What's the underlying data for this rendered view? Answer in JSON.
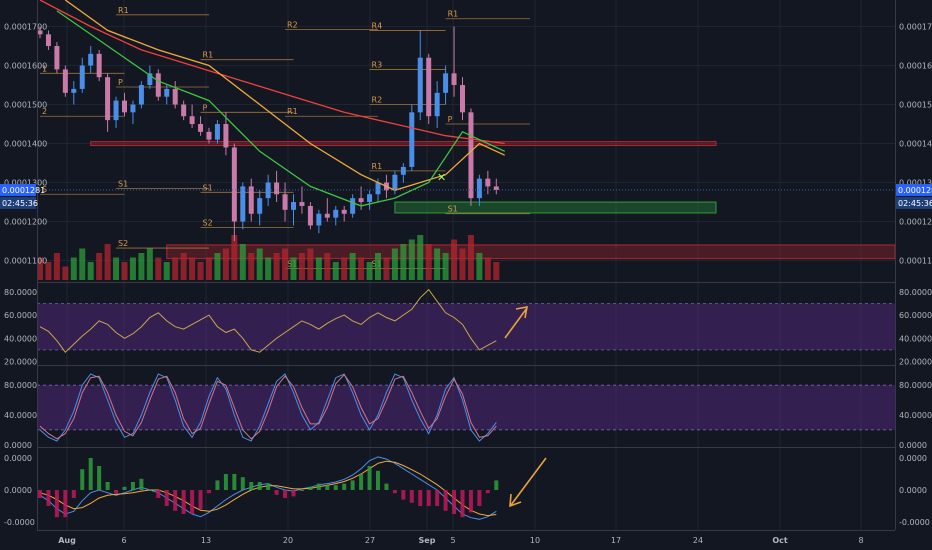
{
  "chart_data": [
    {
      "type": "candlestick",
      "panel": "price",
      "y_ticks": [
        "0.0001700",
        "0.0001600",
        "0.0001500",
        "0.0001400",
        "0.0001300",
        "0.0001200",
        "0.0001100"
      ],
      "y_tick_values": [
        0.00017,
        0.00016,
        0.00015,
        0.00014,
        0.00013,
        0.00012,
        0.00011
      ],
      "ylim": [
        0.0001045,
        0.0001768
      ],
      "last_price_label": "0.0001281",
      "last_price": 0.0001281,
      "countdown_label": "02:45:36",
      "candles": [
        [
          0.000169,
          0.00017,
          0.000167,
          0.000168
        ],
        [
          0.000168,
          0.000169,
          0.000164,
          0.000165
        ],
        [
          0.000165,
          0.000166,
          0.000158,
          0.000159
        ],
        [
          0.000159,
          0.00016,
          0.000152,
          0.000153
        ],
        [
          0.000153,
          0.000156,
          0.00015,
          0.000154
        ],
        [
          0.000154,
          0.000162,
          0.000153,
          0.00016
        ],
        [
          0.00016,
          0.000165,
          0.000158,
          0.000163
        ],
        [
          0.000163,
          0.000164,
          0.000156,
          0.000157
        ],
        [
          0.000157,
          0.000158,
          0.000143,
          0.000146
        ],
        [
          0.000146,
          0.000152,
          0.000144,
          0.000151
        ],
        [
          0.000151,
          0.000153,
          0.000147,
          0.000148
        ],
        [
          0.000148,
          0.000151,
          0.000145,
          0.00015
        ],
        [
          0.00015,
          0.000156,
          0.000149,
          0.000155
        ],
        [
          0.000155,
          0.00016,
          0.000154,
          0.000158
        ],
        [
          0.000158,
          0.000159,
          0.000151,
          0.000152
        ],
        [
          0.000152,
          0.000155,
          0.00015,
          0.000154
        ],
        [
          0.000154,
          0.000156,
          0.000149,
          0.00015
        ],
        [
          0.00015,
          0.000151,
          0.000146,
          0.000147
        ],
        [
          0.000147,
          0.00015,
          0.000144,
          0.000145
        ],
        [
          0.000145,
          0.000147,
          0.000142,
          0.000143
        ],
        [
          0.000143,
          0.000144,
          0.00014,
          0.000141
        ],
        [
          0.000141,
          0.000146,
          0.00014,
          0.000145
        ],
        [
          0.000145,
          0.000148,
          0.000137,
          0.000139
        ],
        [
          0.000139,
          0.00014,
          0.000115,
          0.00012
        ],
        [
          0.00012,
          0.00013,
          0.000118,
          0.000129
        ],
        [
          0.000129,
          0.000131,
          0.00012,
          0.000122
        ],
        [
          0.000122,
          0.000128,
          0.000119,
          0.000126
        ],
        [
          0.000126,
          0.000132,
          0.000124,
          0.00013
        ],
        [
          0.00013,
          0.000133,
          0.000125,
          0.000127
        ],
        [
          0.000127,
          0.00013,
          0.00012,
          0.000123
        ],
        [
          0.000123,
          0.000127,
          0.000119,
          0.000125
        ],
        [
          0.000125,
          0.000129,
          0.000122,
          0.000124
        ],
        [
          0.000124,
          0.000125,
          0.000118,
          0.000119
        ],
        [
          0.000119,
          0.000123,
          0.000117,
          0.000122
        ],
        [
          0.000122,
          0.000126,
          0.00012,
          0.000121
        ],
        [
          0.000121,
          0.000124,
          0.000119,
          0.000123
        ],
        [
          0.000123,
          0.000124,
          0.00012,
          0.000122
        ],
        [
          0.000122,
          0.000127,
          0.000121,
          0.000126
        ],
        [
          0.000126,
          0.000129,
          0.000123,
          0.000125
        ],
        [
          0.000125,
          0.000128,
          0.000123,
          0.000127
        ],
        [
          0.000127,
          0.000131,
          0.000125,
          0.00013
        ],
        [
          0.00013,
          0.000132,
          0.000126,
          0.000128
        ],
        [
          0.000128,
          0.000133,
          0.000127,
          0.000132
        ],
        [
          0.000132,
          0.000135,
          0.00013,
          0.000134
        ],
        [
          0.000134,
          0.00015,
          0.000133,
          0.000148
        ],
        [
          0.000148,
          0.000169,
          0.000146,
          0.000162
        ],
        [
          0.000162,
          0.000163,
          0.000145,
          0.000147
        ],
        [
          0.000147,
          0.000156,
          0.000144,
          0.000153
        ],
        [
          0.000153,
          0.00016,
          0.00015,
          0.000158
        ],
        [
          0.000158,
          0.00017,
          0.000152,
          0.000155
        ],
        [
          0.000155,
          0.000157,
          0.000146,
          0.000148
        ],
        [
          0.000148,
          0.000149,
          0.000124,
          0.000126
        ],
        [
          0.000126,
          0.000132,
          0.000124,
          0.000131
        ],
        [
          0.000131,
          0.000133,
          0.000127,
          0.000129
        ],
        [
          0.000129,
          0.000131,
          0.000127,
          0.0001281
        ]
      ],
      "moving_averages": [
        {
          "color": "#f0413b",
          "points": [
            [
              0.0001768,
              0
            ],
            [
              0.00017,
              6
            ],
            [
              0.000164,
              12
            ],
            [
              0.00016,
              18
            ],
            [
              0.000156,
              24
            ],
            [
              0.000152,
              30
            ],
            [
              0.000148,
              36
            ],
            [
              0.000145,
              42
            ],
            [
              0.000142,
              48
            ],
            [
              0.00014,
              55
            ]
          ]
        },
        {
          "color": "#f0a93b",
          "points": [
            [
              0.0001768,
              3
            ],
            [
              0.000169,
              8
            ],
            [
              0.000164,
              14
            ],
            [
              0.00016,
              20
            ],
            [
              0.00015,
              26
            ],
            [
              0.00014,
              32
            ],
            [
              0.000132,
              38
            ],
            [
              0.000128,
              42
            ],
            [
              0.000132,
              48
            ],
            [
              0.00014,
              52
            ],
            [
              0.000137,
              55
            ]
          ]
        },
        {
          "color": "#3ec43e",
          "points": [
            [
              0.000174,
              2
            ],
            [
              0.000165,
              8
            ],
            [
              0.000156,
              14
            ],
            [
              0.000151,
              20
            ],
            [
              0.000138,
              26
            ],
            [
              0.000129,
              32
            ],
            [
              0.000124,
              38
            ],
            [
              0.000126,
              42
            ],
            [
              0.00013,
              46
            ],
            [
              0.000143,
              50
            ],
            [
              0.000138,
              55
            ]
          ]
        }
      ],
      "horizontal_zones": [
        {
          "color": "#b3262e",
          "y": [
            0.0001395,
            0.0001405
          ],
          "x_start": 6,
          "x_end": 80
        },
        {
          "color": "#2e9e3a",
          "y": [
            0.0001222,
            0.000125
          ],
          "x_start": 42,
          "x_end": 80
        },
        {
          "color": "#b3262e",
          "y": [
            0.0001105,
            0.000114
          ],
          "x_start": 15,
          "x_end": 110
        }
      ],
      "pivot_levels": [
        {
          "label": "R1",
          "value": 0.000173,
          "x_start": 9,
          "x_end": 20
        },
        {
          "label": "R2",
          "value": 0.0001692,
          "x_start": 29,
          "x_end": 40
        },
        {
          "label": "R1",
          "value": 0.0001615,
          "x_start": 19,
          "x_end": 30
        },
        {
          "label": "1",
          "value": 0.000158,
          "x_start": 0,
          "x_end": 10
        },
        {
          "label": "P",
          "value": 0.0001545,
          "x_start": 9,
          "x_end": 20
        },
        {
          "label": "P",
          "value": 0.000148,
          "x_start": 19,
          "x_end": 30
        },
        {
          "label": "R1",
          "value": 0.000147,
          "x_start": 29,
          "x_end": 40
        },
        {
          "label": "2",
          "value": 0.000147,
          "x_start": 0,
          "x_end": 10
        },
        {
          "label": "S1",
          "value": 0.0001285,
          "x_start": 9,
          "x_end": 20
        },
        {
          "label": "S1",
          "value": 0.0001275,
          "x_start": 19,
          "x_end": 30
        },
        {
          "label": "S",
          "value": 0.000127,
          "x_start": 0,
          "x_end": 10
        },
        {
          "label": "S2",
          "value": 0.0001185,
          "x_start": 19,
          "x_end": 30
        },
        {
          "label": "S2",
          "value": 0.0001132,
          "x_start": 9,
          "x_end": 20
        },
        {
          "label": "S1",
          "value": 0.000108,
          "x_start": 29,
          "x_end": 40
        },
        {
          "label": "R1",
          "value": 0.000133,
          "x_start": 39,
          "x_end": 48
        },
        {
          "label": "S1",
          "value": 0.000108,
          "x_start": 39,
          "x_end": 48
        },
        {
          "label": "R4",
          "value": 0.000169,
          "x_start": 39,
          "x_end": 48
        },
        {
          "label": "R3",
          "value": 0.000159,
          "x_start": 39,
          "x_end": 48
        },
        {
          "label": "R2",
          "value": 0.00015,
          "x_start": 39,
          "x_end": 48
        },
        {
          "label": "R1",
          "value": 0.000172,
          "x_start": 48,
          "x_end": 58
        },
        {
          "label": "P",
          "value": 0.000145,
          "x_start": 48,
          "x_end": 58
        },
        {
          "label": "S1",
          "value": 0.000122,
          "x_start": 48,
          "x_end": 58
        }
      ],
      "volume_relative": [
        0.5,
        0.4,
        0.6,
        0.3,
        0.5,
        0.7,
        0.4,
        0.6,
        0.8,
        0.5,
        0.4,
        0.5,
        0.6,
        0.7,
        0.5,
        0.4,
        0.5,
        0.6,
        0.5,
        0.4,
        0.5,
        0.6,
        0.7,
        1.0,
        0.8,
        0.6,
        0.7,
        0.5,
        0.6,
        0.7,
        0.5,
        0.6,
        0.7,
        0.5,
        0.6,
        0.4,
        0.5,
        0.6,
        0.5,
        0.4,
        0.6,
        0.5,
        0.7,
        0.8,
        0.9,
        1.0,
        0.8,
        0.7,
        0.6,
        0.9,
        0.7,
        1.0,
        0.6,
        0.5,
        0.4
      ]
    },
    {
      "type": "line",
      "panel": "rsi",
      "y_ticks": [
        "80.0000",
        "60.0000",
        "40.0000",
        "20.0000"
      ],
      "y_tick_values": [
        80,
        60,
        40,
        20
      ],
      "ylim": [
        17,
        86
      ],
      "band": [
        30,
        70
      ],
      "series": [
        {
          "color": "#c9a44a",
          "values": [
            50,
            46,
            38,
            28,
            35,
            42,
            48,
            55,
            52,
            45,
            40,
            44,
            50,
            58,
            62,
            55,
            50,
            48,
            52,
            56,
            60,
            50,
            45,
            48,
            40,
            30,
            28,
            34,
            40,
            45,
            50,
            55,
            52,
            48,
            53,
            57,
            60,
            55,
            52,
            58,
            62,
            58,
            55,
            60,
            65,
            75,
            82,
            72,
            62,
            58,
            52,
            40,
            30,
            34,
            38
          ]
        }
      ]
    },
    {
      "type": "line",
      "panel": "stoch_rsi",
      "y_ticks": [
        "80.0000",
        "40.0000",
        "0.0000"
      ],
      "y_tick_values": [
        80,
        40,
        0
      ],
      "ylim": [
        -3,
        103
      ],
      "band": [
        20,
        80
      ],
      "series": [
        {
          "color": "#4a8ee8",
          "values": [
            20,
            10,
            5,
            20,
            45,
            80,
            95,
            90,
            60,
            30,
            10,
            15,
            40,
            70,
            95,
            90,
            60,
            25,
            10,
            30,
            65,
            90,
            75,
            40,
            10,
            5,
            25,
            55,
            85,
            95,
            70,
            40,
            20,
            30,
            60,
            90,
            95,
            70,
            40,
            20,
            40,
            70,
            95,
            90,
            60,
            35,
            15,
            40,
            75,
            90,
            60,
            20,
            5,
            15,
            30
          ]
        },
        {
          "color": "#d0748a",
          "values": [
            25,
            15,
            8,
            15,
            35,
            70,
            90,
            92,
            70,
            40,
            18,
            12,
            30,
            60,
            88,
            92,
            70,
            35,
            15,
            22,
            55,
            85,
            80,
            50,
            20,
            8,
            18,
            45,
            78,
            92,
            78,
            50,
            28,
            28,
            50,
            82,
            94,
            78,
            50,
            28,
            35,
            60,
            88,
            92,
            70,
            45,
            22,
            35,
            65,
            88,
            68,
            30,
            10,
            12,
            25
          ]
        }
      ]
    },
    {
      "type": "macd",
      "panel": "macd",
      "y_ticks": [
        "0.0000",
        "0.0000",
        "-0.0000"
      ],
      "y_tick_values": [
        0.6,
        0,
        -0.6
      ],
      "ylim": [
        -0.75,
        0.75
      ],
      "series": [
        {
          "color": "#4a8ee8",
          "values": [
            -0.1,
            -0.2,
            -0.35,
            -0.45,
            -0.4,
            -0.2,
            -0.05,
            0.0,
            -0.05,
            -0.1,
            -0.05,
            0.0,
            0.05,
            0.0,
            -0.05,
            -0.15,
            -0.25,
            -0.35,
            -0.45,
            -0.5,
            -0.42,
            -0.3,
            -0.18,
            -0.08,
            0.0,
            0.05,
            0.1,
            0.12,
            0.05,
            0.0,
            -0.02,
            0.02,
            0.05,
            0.1,
            0.12,
            0.15,
            0.2,
            0.28,
            0.4,
            0.55,
            0.62,
            0.58,
            0.5,
            0.4,
            0.3,
            0.2,
            0.1,
            0.0,
            -0.15,
            -0.3,
            -0.45,
            -0.52,
            -0.55,
            -0.5,
            -0.4
          ]
        },
        {
          "color": "#f0a93b",
          "values": [
            -0.05,
            -0.1,
            -0.18,
            -0.28,
            -0.35,
            -0.33,
            -0.25,
            -0.15,
            -0.1,
            -0.08,
            -0.07,
            -0.05,
            -0.02,
            0.0,
            0.0,
            -0.05,
            -0.12,
            -0.2,
            -0.3,
            -0.38,
            -0.4,
            -0.36,
            -0.28,
            -0.18,
            -0.08,
            0.0,
            0.05,
            0.08,
            0.08,
            0.05,
            0.02,
            0.02,
            0.03,
            0.06,
            0.09,
            0.12,
            0.16,
            0.22,
            0.3,
            0.4,
            0.5,
            0.54,
            0.52,
            0.46,
            0.38,
            0.3,
            0.2,
            0.1,
            -0.02,
            -0.15,
            -0.28,
            -0.38,
            -0.45,
            -0.48,
            -0.46
          ]
        }
      ]
    }
  ],
  "x_axis_labels": [
    "Aug",
    "6",
    "13",
    "20",
    "27",
    "Sep",
    "5",
    "10",
    "17",
    "24",
    "Oct",
    "8"
  ]
}
